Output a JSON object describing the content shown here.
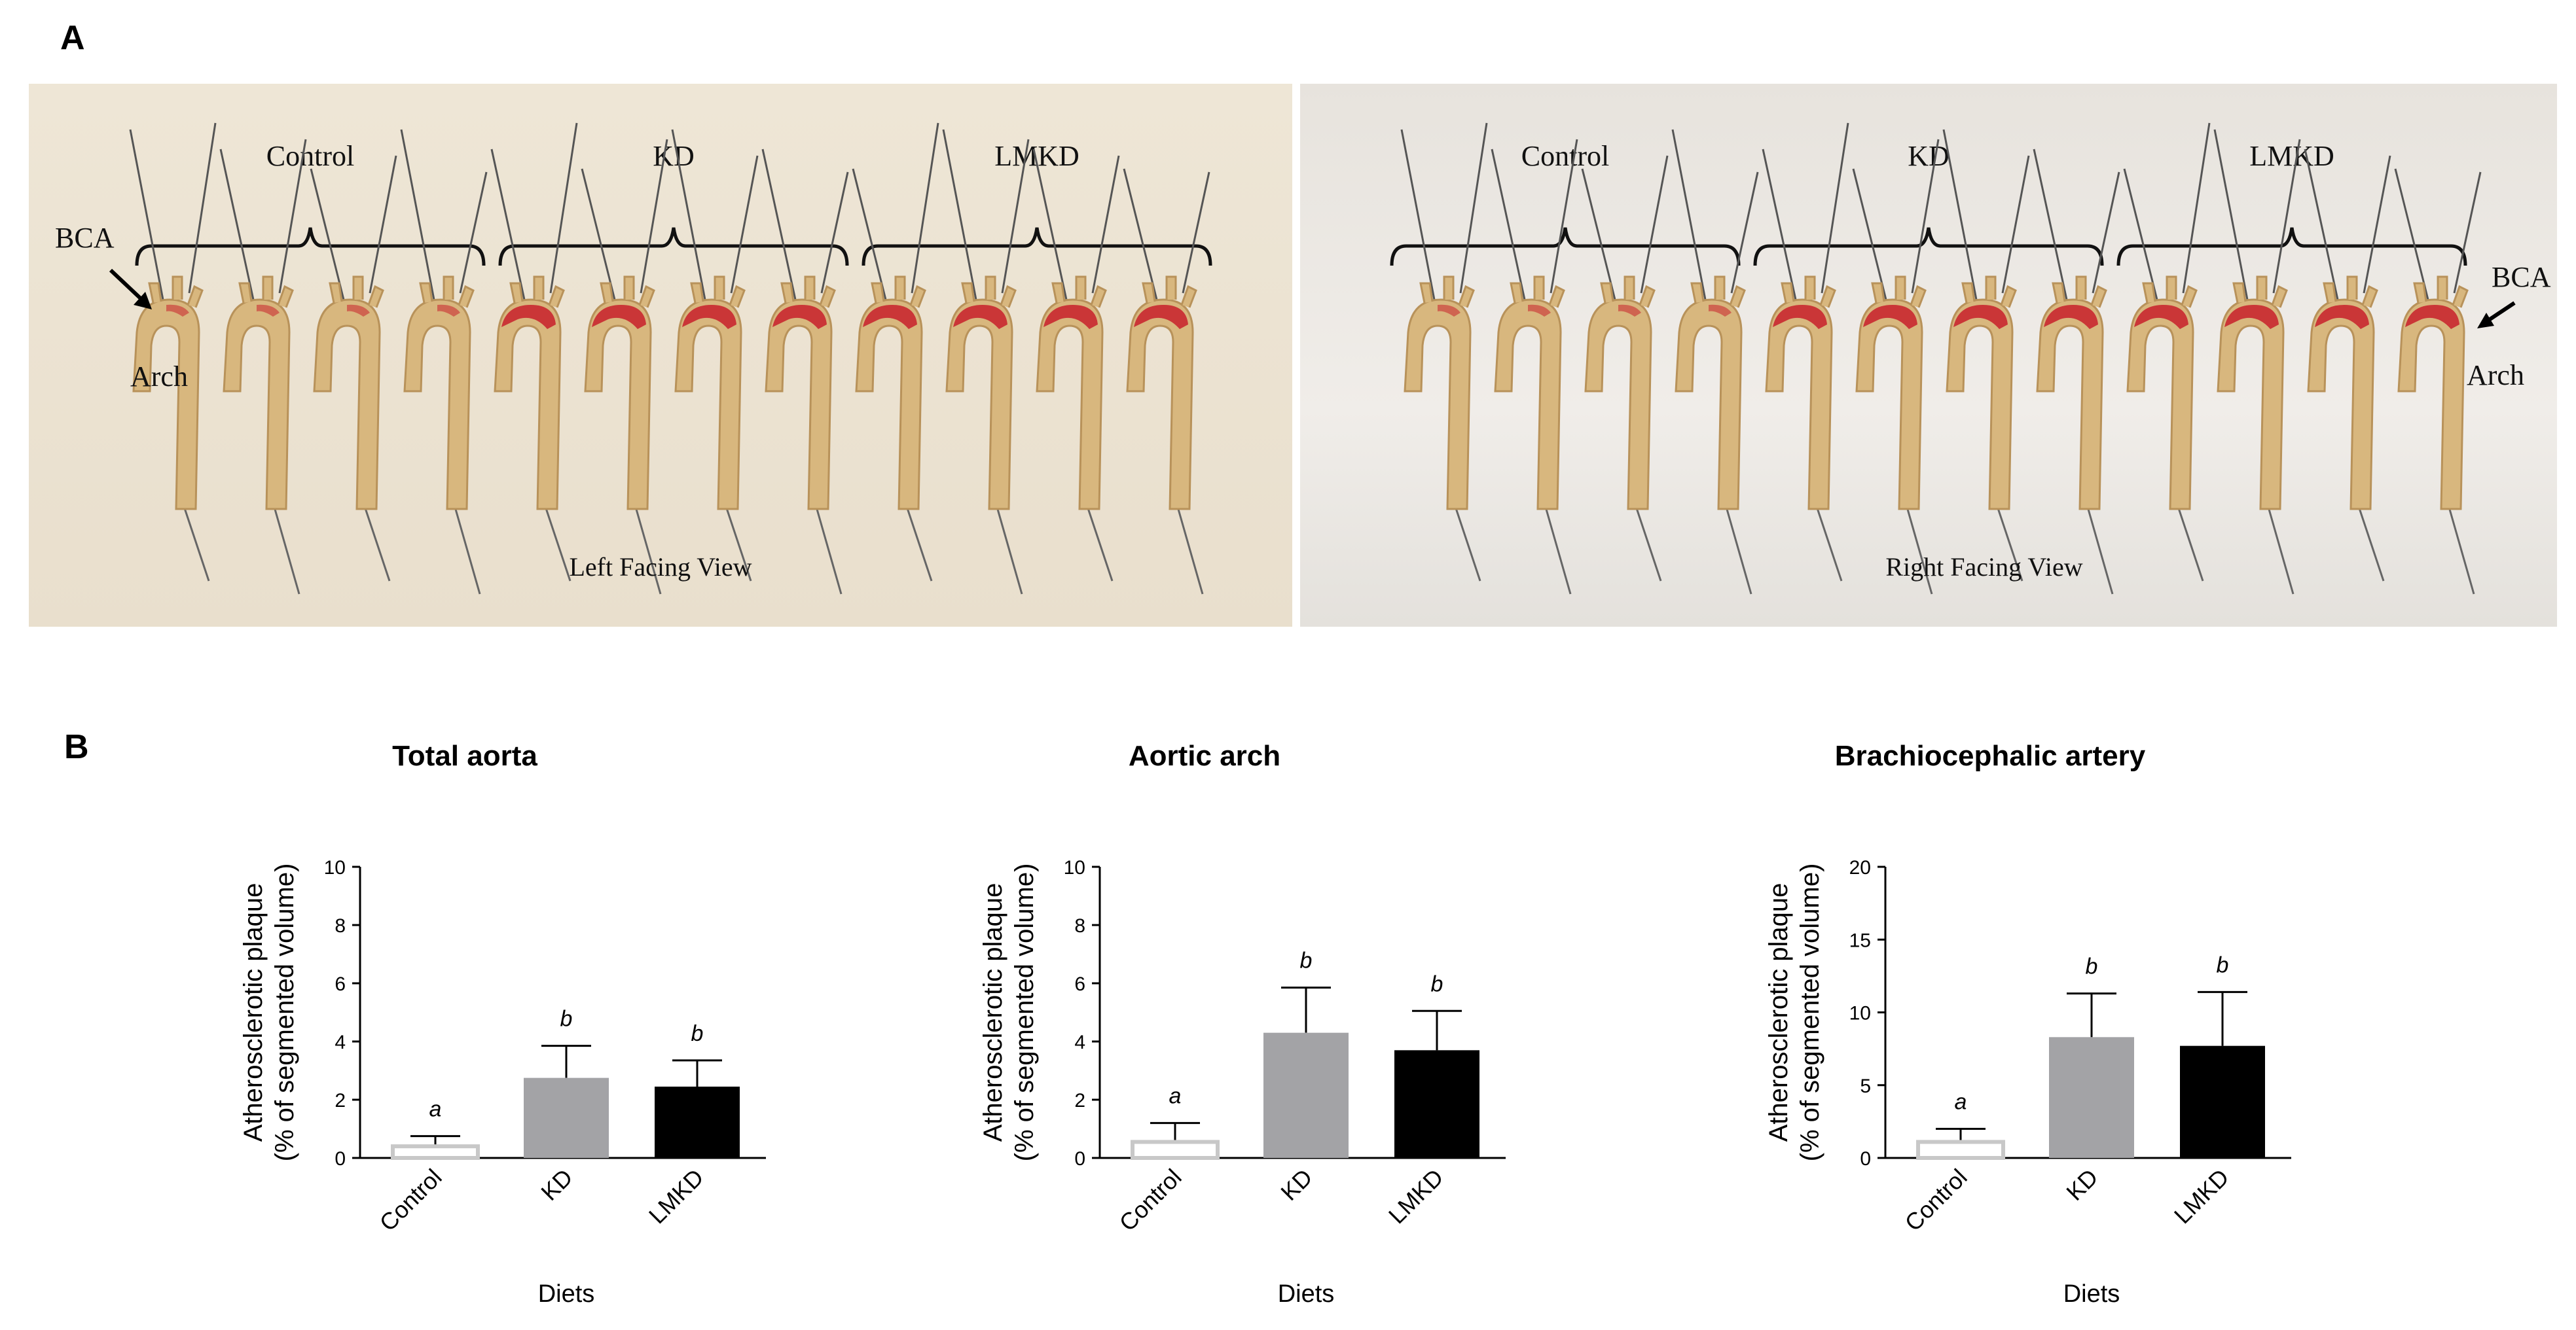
{
  "panels": {
    "a": "A",
    "b": "B"
  },
  "photos": [
    {
      "groups": [
        "Control",
        "KD",
        "LMKD"
      ],
      "view": "Left Facing View",
      "bca": "BCA",
      "arch": "Arch"
    },
    {
      "groups": [
        "Control",
        "KD",
        "LMKD"
      ],
      "view": "Right Facing View",
      "bca": "BCA",
      "arch": "Arch"
    }
  ],
  "chart_data": [
    {
      "type": "bar",
      "title": "Total aorta",
      "xlabel": "Diets",
      "ylabel": [
        "Atherosclerotic plaque",
        "(% of segmented volume)"
      ],
      "categories": [
        "Control",
        "KD",
        "LMKD"
      ],
      "values": [
        0.4,
        2.75,
        2.45
      ],
      "errors": [
        0.35,
        1.1,
        0.9
      ],
      "letters": [
        "a",
        "b",
        "b"
      ],
      "ylim": [
        0,
        10
      ],
      "yticks": [
        0,
        2,
        4,
        6,
        8,
        10
      ],
      "colors": [
        "#ffffff",
        "#a3a3a6",
        "#000000"
      ]
    },
    {
      "type": "bar",
      "title": "Aortic arch",
      "xlabel": "Diets",
      "ylabel": [
        "Atherosclerotic plaque",
        "(% of segmented volume)"
      ],
      "categories": [
        "Control",
        "KD",
        "LMKD"
      ],
      "values": [
        0.55,
        4.3,
        3.7
      ],
      "errors": [
        0.65,
        1.55,
        1.35
      ],
      "letters": [
        "a",
        "b",
        "b"
      ],
      "ylim": [
        0,
        10
      ],
      "yticks": [
        0,
        2,
        4,
        6,
        8,
        10
      ],
      "colors": [
        "#ffffff",
        "#a3a3a6",
        "#000000"
      ]
    },
    {
      "type": "bar",
      "title": "Brachiocephalic artery",
      "xlabel": "Diets",
      "ylabel": [
        "Atherosclerotic plaque",
        "(% of segmented volume)"
      ],
      "categories": [
        "Control",
        "KD",
        "LMKD"
      ],
      "values": [
        1.1,
        8.3,
        7.7
      ],
      "errors": [
        0.9,
        3.0,
        3.7
      ],
      "letters": [
        "a",
        "b",
        "b"
      ],
      "ylim": [
        0,
        20
      ],
      "yticks": [
        0,
        5,
        10,
        15,
        20
      ],
      "colors": [
        "#ffffff",
        "#a3a3a6",
        "#000000"
      ]
    }
  ]
}
